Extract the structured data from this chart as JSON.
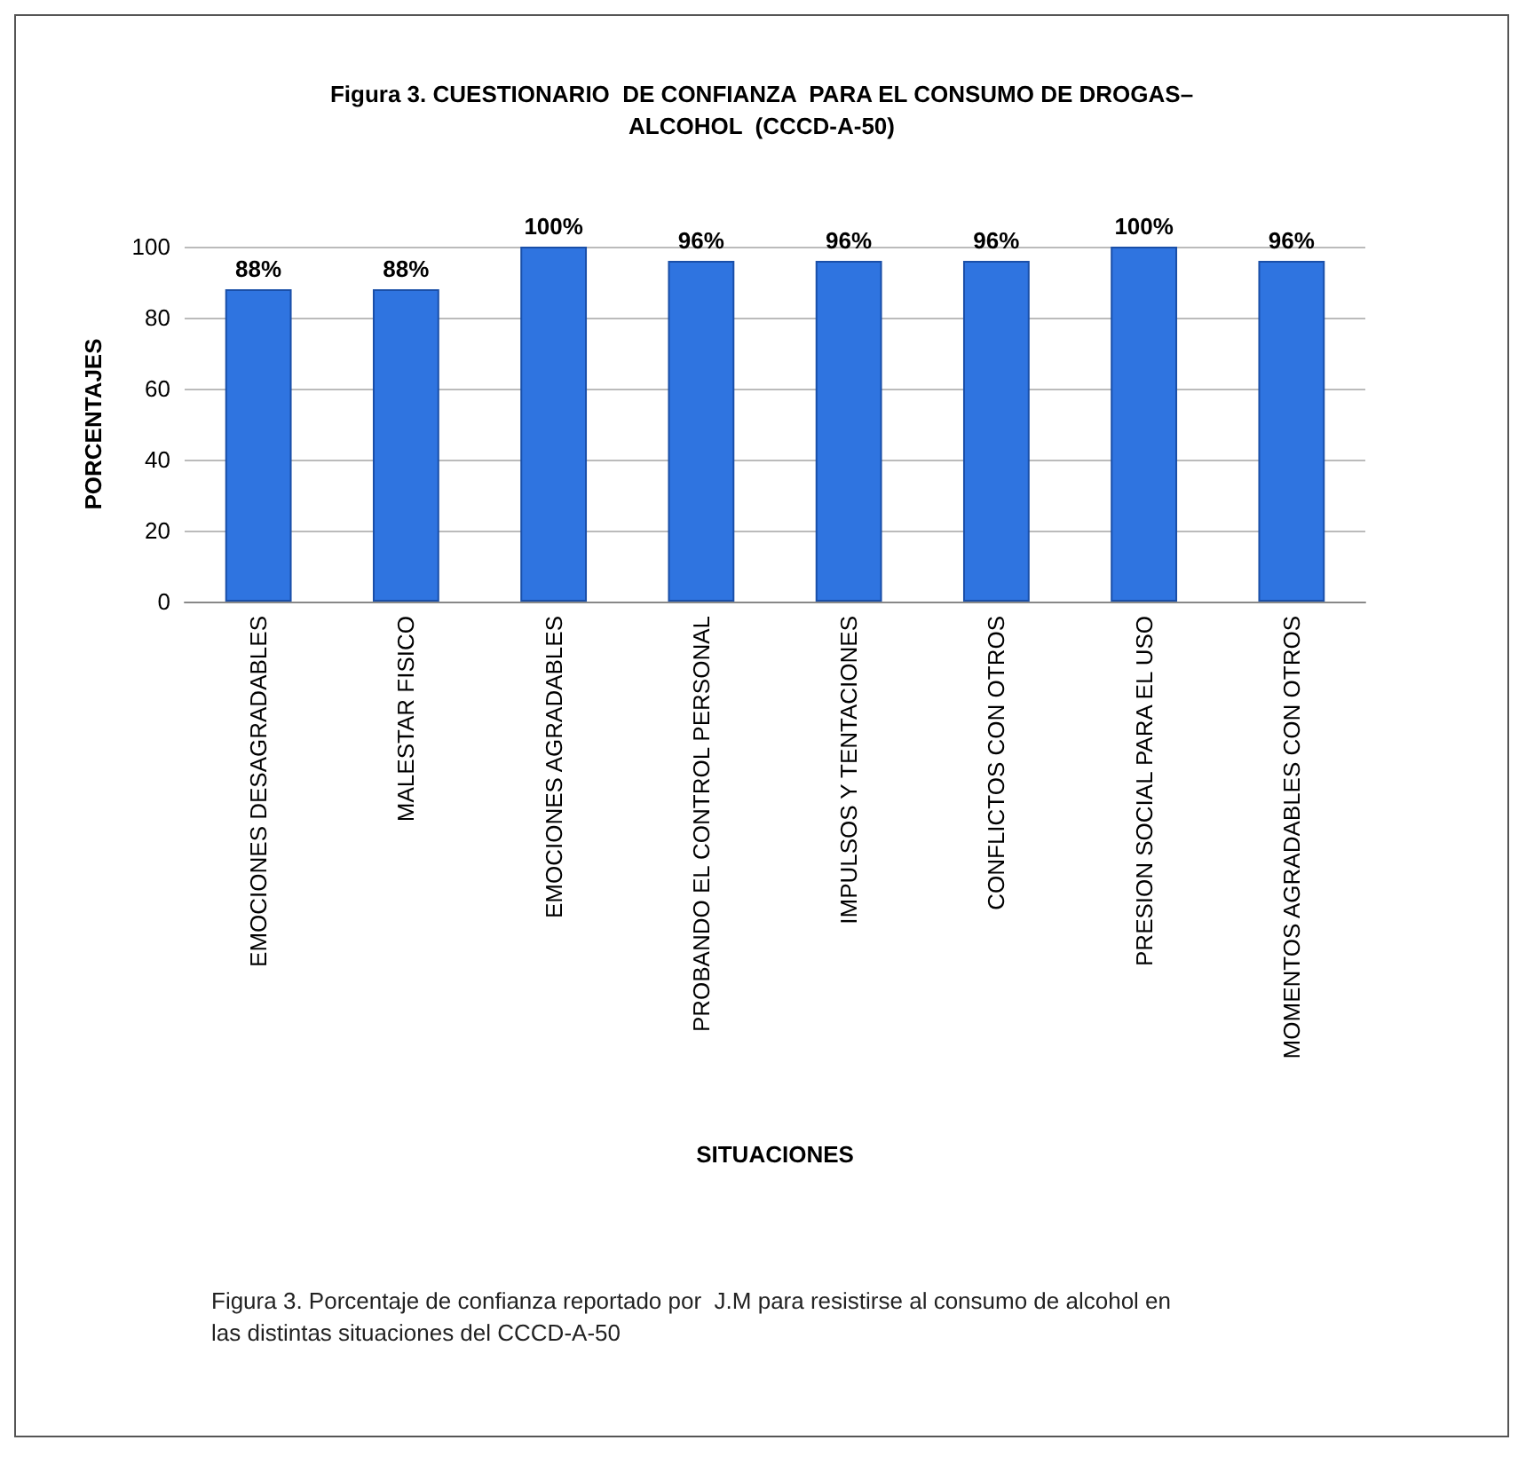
{
  "chart_data": {
    "type": "bar",
    "title": "Figura 3. CUESTIONARIO  DE CONFIANZA  PARA EL CONSUMO DE DROGAS–\nALCOHOL  (CCCD-A-50)",
    "xlabel": "SITUACIONES",
    "ylabel": "PORCENTAJES",
    "categories": [
      "EMOCIONES DESAGRADABLES",
      "MALESTAR FISICO",
      "EMOCIONES AGRADABLES",
      "PROBANDO EL CONTROL PERSONAL",
      "IMPULSOS Y TENTACIONES",
      "CONFLICTOS CON OTROS",
      "PRESION SOCIAL PARA EL USO",
      "MOMENTOS AGRADABLES CON OTROS"
    ],
    "values": [
      88,
      88,
      100,
      96,
      96,
      96,
      100,
      96
    ],
    "value_labels": [
      "88%",
      "88%",
      "100%",
      "96%",
      "96%",
      "96%",
      "100%",
      "96%"
    ],
    "color": "#2f74e0",
    "ylim": [
      0,
      100
    ],
    "yticks": [
      0,
      20,
      40,
      60,
      80,
      100
    ],
    "grid": "y",
    "annotations": [
      "Figura 3. Porcentaje de confianza reportado por  J.M para resistirse al consumo de alcohol en las distintas situaciones del CCCD-A-50"
    ]
  }
}
